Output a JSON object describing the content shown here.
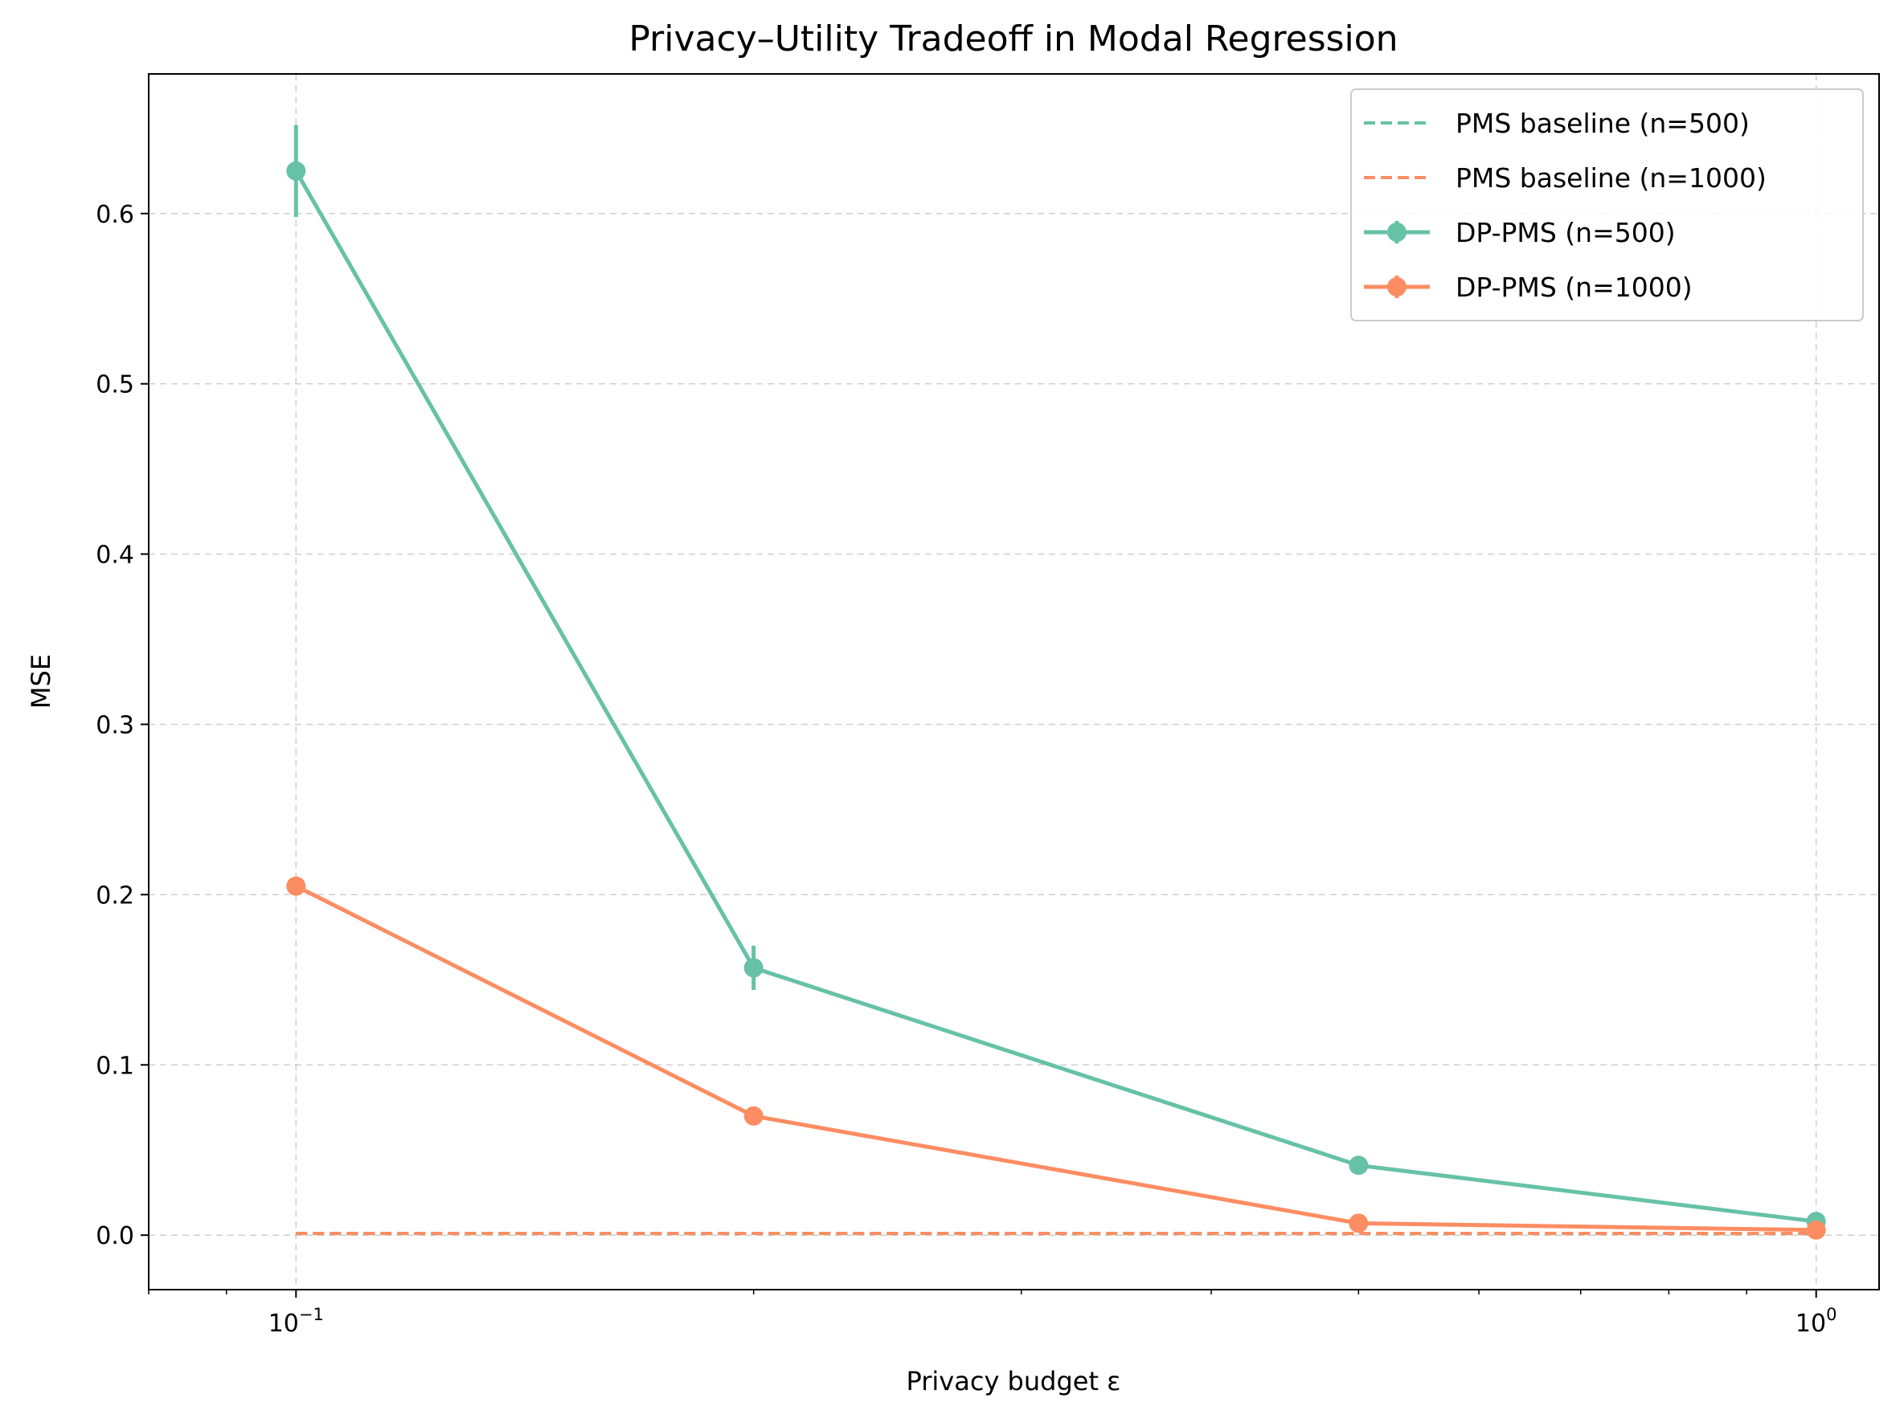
{
  "chart_data": {
    "type": "line",
    "title": "Privacy–Utility Tradeoff in Modal Regression",
    "xlabel": "Privacy budget ε",
    "ylabel": "MSE",
    "xscale": "log",
    "xlim": [
      0.08,
      1.1
    ],
    "ylim": [
      -0.032,
      0.682
    ],
    "x_ticks": [
      {
        "value": 0.1,
        "base": "10",
        "exp": "−1"
      },
      {
        "value": 1,
        "base": "10",
        "exp": "0"
      }
    ],
    "y_ticks": [
      {
        "value": 0.0,
        "label": "0.0"
      },
      {
        "value": 0.1,
        "label": "0.1"
      },
      {
        "value": 0.2,
        "label": "0.2"
      },
      {
        "value": 0.3,
        "label": "0.3"
      },
      {
        "value": 0.4,
        "label": "0.4"
      },
      {
        "value": 0.5,
        "label": "0.5"
      },
      {
        "value": 0.6,
        "label": "0.6"
      }
    ],
    "grid": true,
    "legend_position": "top-right",
    "x": [
      0.1,
      0.2,
      0.5,
      1.0
    ],
    "series": [
      {
        "name": "PMS baseline (n=500)",
        "style": "dashed",
        "color": "#66c2a5",
        "values": [
          0.001,
          0.001,
          0.001,
          0.001
        ],
        "errors": null
      },
      {
        "name": "PMS baseline (n=1000)",
        "style": "dashed",
        "color": "#fc8d62",
        "values": [
          0.001,
          0.001,
          0.001,
          0.001
        ],
        "errors": null
      },
      {
        "name": "DP-PMS (n=500)",
        "style": "solid-marker",
        "color": "#66c2a5",
        "values": [
          0.625,
          0.157,
          0.041,
          0.008
        ],
        "errors": [
          0.027,
          0.013,
          0.002,
          0.001
        ]
      },
      {
        "name": "DP-PMS (n=1000)",
        "style": "solid-marker",
        "color": "#fc8d62",
        "values": [
          0.205,
          0.07,
          0.007,
          0.003
        ],
        "errors": [
          0.002,
          0.002,
          0.001,
          0.001
        ]
      }
    ]
  }
}
